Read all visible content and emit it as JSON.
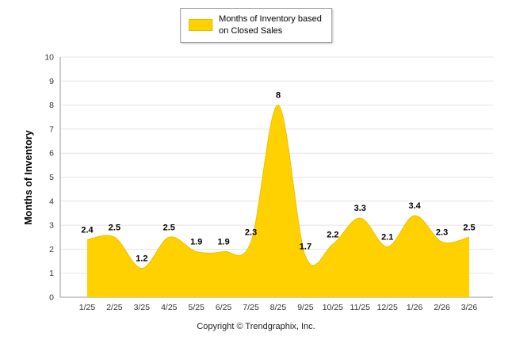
{
  "legend": {
    "label_line1": "Months of Inventory based",
    "label_line2": "on Closed Sales"
  },
  "y_axis_title": "Months of Inventory",
  "footer": {
    "copyright": "Copyright © Trendgraphix, Inc."
  },
  "colors": {
    "area_fill": "#FFD100",
    "area_stroke": "#EFBE00",
    "grid": "#E4E4E4",
    "axis": "#9a9a9a",
    "tick_text": "#333333",
    "data_label": "#000000"
  },
  "chart_data": {
    "type": "area",
    "title": "Months of Inventory based on Closed Sales",
    "categories": [
      "1/25",
      "2/25",
      "3/25",
      "4/25",
      "5/25",
      "6/25",
      "7/25",
      "8/25",
      "9/25",
      "10/25",
      "11/25",
      "12/25",
      "1/26",
      "2/26",
      "3/26"
    ],
    "values": [
      2.4,
      2.5,
      1.2,
      2.5,
      1.9,
      1.9,
      2.3,
      8,
      1.7,
      2.2,
      3.3,
      2.1,
      3.4,
      2.3,
      2.5
    ],
    "xlabel": "",
    "ylabel": "Months of Inventory",
    "ylim": [
      0,
      10
    ],
    "y_ticks": [
      0,
      1,
      2,
      3,
      4,
      5,
      6,
      7,
      8,
      9,
      10
    ],
    "grid": true,
    "legend_position": "top",
    "legend_entries": [
      "Months of Inventory based on Closed Sales"
    ]
  }
}
